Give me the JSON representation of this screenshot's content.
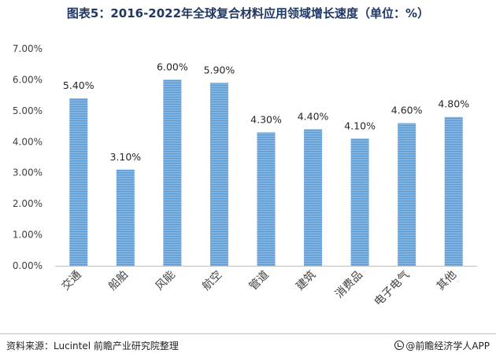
{
  "chart_data": {
    "type": "bar",
    "title": "图表5：2016-2022年全球复合材料应用领域增长速度（单位：%）",
    "categories": [
      "交通",
      "船舶",
      "风能",
      "航空",
      "管道",
      "建筑",
      "消费品",
      "电子电气",
      "其他"
    ],
    "values": [
      5.4,
      3.1,
      6.0,
      5.9,
      4.3,
      4.4,
      4.1,
      4.6,
      4.8
    ],
    "data_labels": [
      "5.40%",
      "3.10%",
      "6.00%",
      "5.90%",
      "4.30%",
      "4.40%",
      "4.10%",
      "4.60%",
      "4.80%"
    ],
    "ylim": [
      0,
      7
    ],
    "yticks": [
      "0.00%",
      "1.00%",
      "2.00%",
      "3.00%",
      "4.00%",
      "5.00%",
      "6.00%",
      "7.00%"
    ],
    "xlabel": "",
    "ylabel": "",
    "grid": false,
    "legend": "none",
    "colors": {
      "bar": "#5b9bd5",
      "stripe": "#9cc3e8",
      "axis": "#bfbfbf",
      "text": "#404040"
    }
  },
  "footer": {
    "source": "资料来源：Lucintel 前瞻产业研究院整理",
    "brand": "@前瞻经济学人APP"
  }
}
